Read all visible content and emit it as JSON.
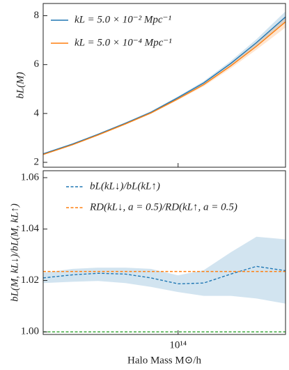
{
  "chart_data": [
    {
      "type": "line",
      "xscale": "log",
      "ylabel": "bL(M)",
      "x": [
        17000000000000.0,
        25000000000000.0,
        35000000000000.0,
        50000000000000.0,
        70000000000000.0,
        100000000000000.0,
        140000000000000.0,
        200000000000000.0,
        280000000000000.0,
        410000000000000.0
      ],
      "xlim": [
        17000000000000.0,
        410000000000000.0
      ],
      "xticks": [
        100000000000000.0
      ],
      "ylim": [
        1.8,
        8.5
      ],
      "yticks": [
        2,
        4,
        6,
        8
      ],
      "legend": "upper left",
      "series": [
        {
          "name": "kL = 5.0 × 10⁻² Mpc⁻¹",
          "color": "#1f77b4",
          "values": [
            2.35,
            2.75,
            3.15,
            3.6,
            4.05,
            4.65,
            5.25,
            6.05,
            6.9,
            7.95
          ],
          "lower": [
            2.33,
            2.73,
            3.13,
            3.57,
            4.01,
            4.6,
            5.18,
            5.95,
            6.76,
            7.72
          ],
          "upper": [
            2.37,
            2.77,
            3.17,
            3.63,
            4.09,
            4.7,
            5.32,
            6.15,
            7.04,
            8.18
          ]
        },
        {
          "name": "kL = 5.0 × 10⁻⁴ Mpc⁻¹",
          "color": "#ff7f0e",
          "values": [
            2.32,
            2.72,
            3.12,
            3.57,
            4.02,
            4.6,
            5.18,
            5.95,
            6.75,
            7.75
          ],
          "lower": [
            2.3,
            2.7,
            3.1,
            3.54,
            3.98,
            4.55,
            5.11,
            5.85,
            6.61,
            7.52
          ],
          "upper": [
            2.34,
            2.74,
            3.14,
            3.6,
            4.06,
            4.65,
            5.25,
            6.05,
            6.89,
            7.98
          ]
        }
      ]
    },
    {
      "type": "line",
      "xscale": "log",
      "ylabel": "bL(M, kL↓)/bL(M, kL↑)",
      "xlabel": "Halo Mass M⊙/h",
      "x": [
        17000000000000.0,
        25000000000000.0,
        35000000000000.0,
        50000000000000.0,
        70000000000000.0,
        100000000000000.0,
        140000000000000.0,
        200000000000000.0,
        280000000000000.0,
        410000000000000.0
      ],
      "xlim": [
        17000000000000.0,
        410000000000000.0
      ],
      "xticks": [
        {
          "value": 100000000000000.0,
          "label": "10¹⁴"
        }
      ],
      "ylim": [
        0.999,
        1.0627
      ],
      "yticks": [
        {
          "value": 1.0,
          "label": "1.00"
        },
        {
          "value": 1.02,
          "label": "1.02"
        },
        {
          "value": 1.04,
          "label": "1.04"
        },
        {
          "value": 1.06,
          "label": "1.06"
        }
      ],
      "legend": "upper left",
      "series": [
        {
          "name": "bL(kL↓)/bL(kL↑)",
          "color": "#1f77b4",
          "dashed": true,
          "values": [
            1.021,
            1.0222,
            1.0228,
            1.0225,
            1.021,
            1.0187,
            1.019,
            1.0225,
            1.0255,
            1.0238
          ],
          "lower": [
            1.019,
            1.0195,
            1.0198,
            1.019,
            1.0175,
            1.0155,
            1.014,
            1.014,
            1.013,
            1.011
          ],
          "upper": [
            1.023,
            1.0245,
            1.025,
            1.025,
            1.0245,
            1.022,
            1.024,
            1.031,
            1.037,
            1.036
          ]
        },
        {
          "name": "RD(kL↓, a = 0.5)/RD(kL↑, a = 0.5)",
          "color": "#ff7f0e",
          "dashed": true,
          "values": [
            1.0235,
            1.0235,
            1.0235,
            1.0235,
            1.0235,
            1.0235,
            1.0235,
            1.0235,
            1.0235,
            1.0235
          ]
        },
        {
          "color": "#2ca02c",
          "dashed": true,
          "values": [
            1.0,
            1.0,
            1.0,
            1.0,
            1.0,
            1.0,
            1.0,
            1.0,
            1.0,
            1.0
          ]
        }
      ]
    }
  ]
}
